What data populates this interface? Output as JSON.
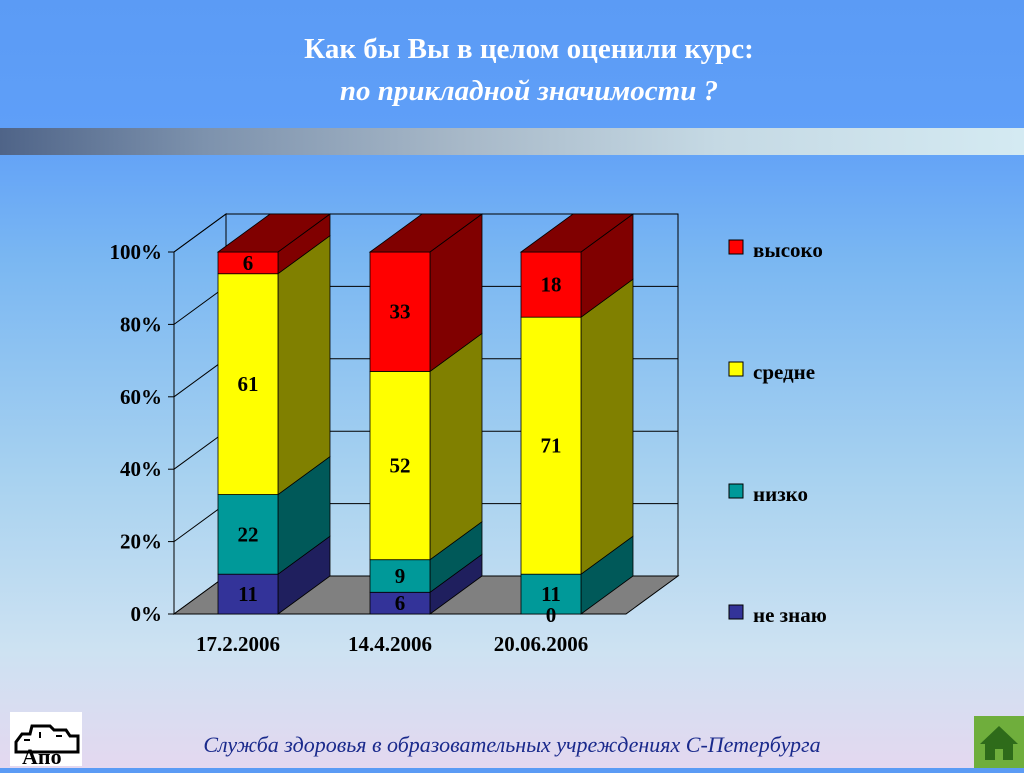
{
  "title": {
    "line1": "Как бы Вы в целом оценили курс:",
    "line2": "по прикладной значимости ?"
  },
  "footer": {
    "text": "Служба здоровья в образовательных учреждениях С-Петербурга"
  },
  "logo": {
    "text": "Апо"
  },
  "icons": {
    "logo": "apo-logo-icon",
    "home": "home-icon"
  },
  "chart_data": {
    "type": "bar",
    "stacked": true,
    "three_d": true,
    "categories": [
      "17.2.2006",
      "14.4.2006",
      "20.06.2006"
    ],
    "yticks": [
      "0%",
      "20%",
      "40%",
      "60%",
      "80%",
      "100%"
    ],
    "ylim": [
      0,
      100
    ],
    "grid": true,
    "legend_position": "right",
    "series": [
      {
        "name": "не знаю",
        "color": "#333399",
        "side_color": "#1f1f5e",
        "values": [
          11,
          6,
          0
        ]
      },
      {
        "name": "низко",
        "color": "#009999",
        "side_color": "#005959",
        "values": [
          22,
          9,
          11
        ]
      },
      {
        "name": "средне",
        "color": "#ffff00",
        "side_color": "#808000",
        "values": [
          61,
          52,
          71
        ]
      },
      {
        "name": "высоко",
        "color": "#ff0000",
        "side_color": "#800000",
        "values": [
          6,
          33,
          18
        ]
      }
    ],
    "legend_order": [
      "высоко",
      "средне",
      "низко",
      "не знаю"
    ]
  }
}
